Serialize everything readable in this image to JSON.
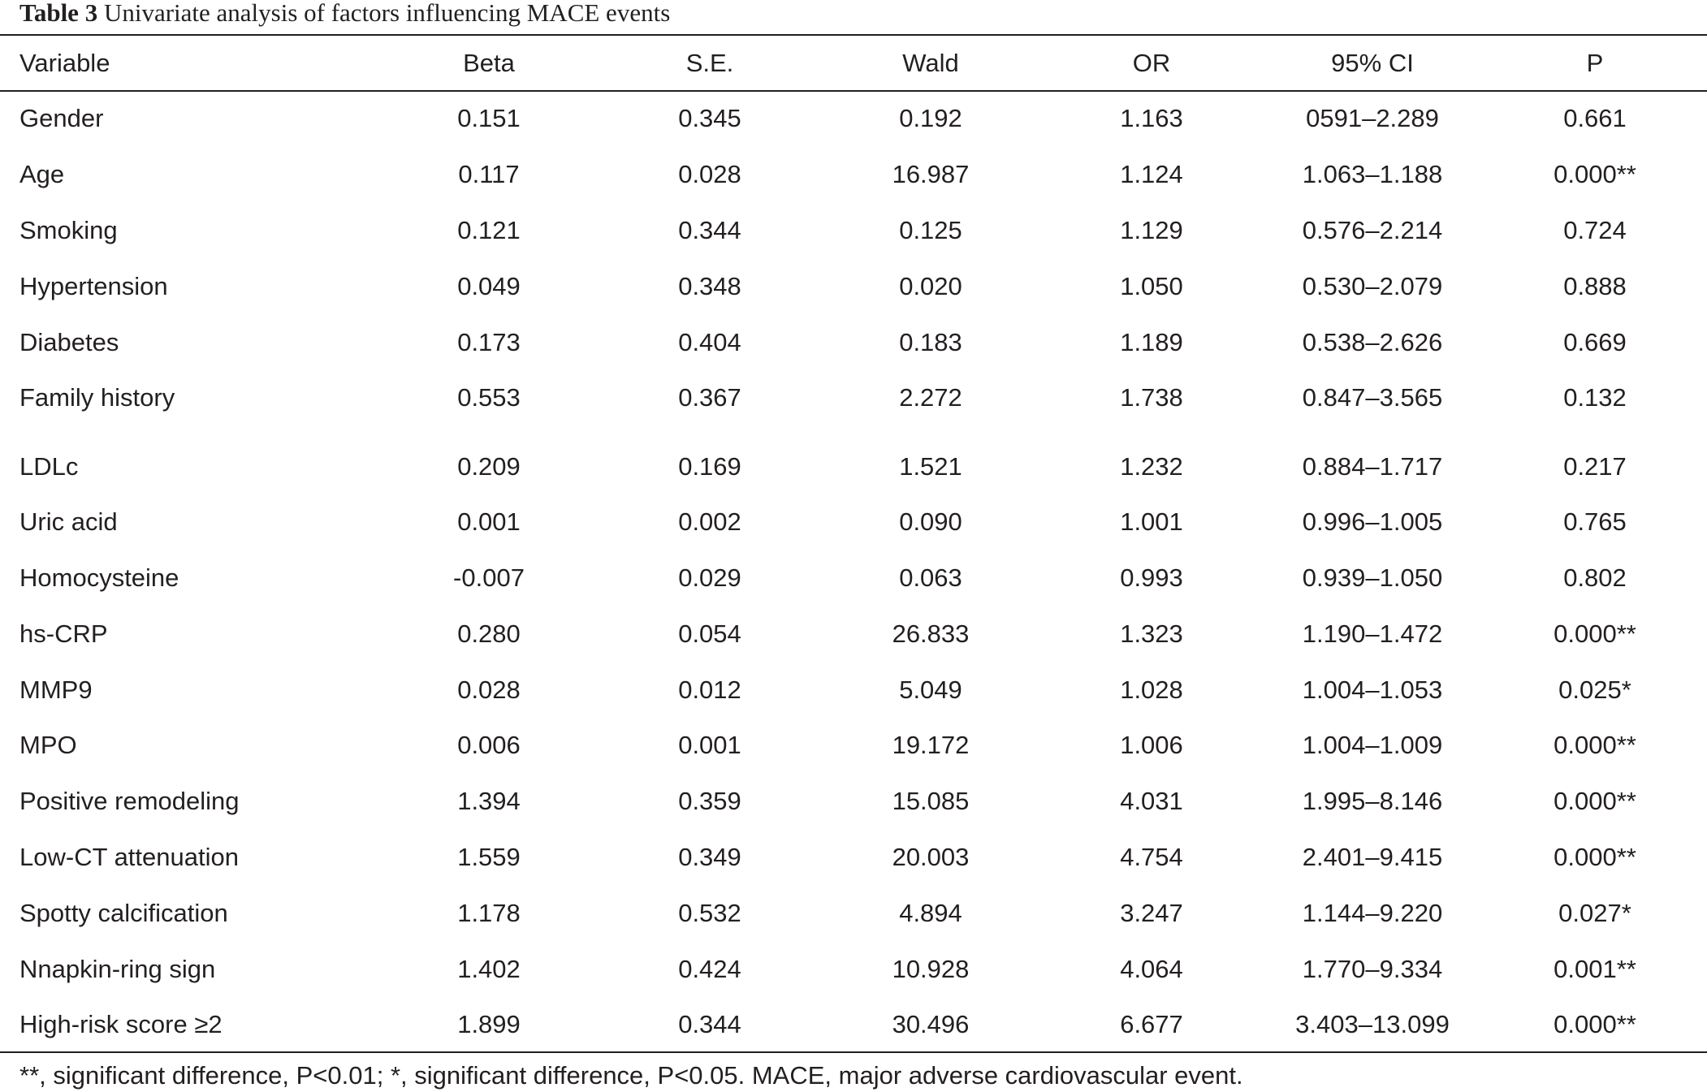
{
  "caption": {
    "label": "Table 3",
    "text": "Univariate analysis of factors influencing MACE events"
  },
  "table": {
    "headers": [
      "Variable",
      "Beta",
      "S.E.",
      "Wald",
      "OR",
      "95% CI",
      "P"
    ],
    "rows": [
      [
        "Gender",
        "0.151",
        "0.345",
        "0.192",
        "1.163",
        "0591–2.289",
        "0.661"
      ],
      [
        "Age",
        "0.117",
        "0.028",
        "16.987",
        "1.124",
        "1.063–1.188",
        "0.000**"
      ],
      [
        "Smoking",
        "0.121",
        "0.344",
        "0.125",
        "1.129",
        "0.576–2.214",
        "0.724"
      ],
      [
        "Hypertension",
        "0.049",
        "0.348",
        "0.020",
        "1.050",
        "0.530–2.079",
        "0.888"
      ],
      [
        "Diabetes",
        "0.173",
        "0.404",
        "0.183",
        "1.189",
        "0.538–2.626",
        "0.669"
      ],
      [
        "Family history",
        "0.553",
        "0.367",
        "2.272",
        "1.738",
        "0.847–3.565",
        "0.132"
      ],
      [
        "LDLc",
        "0.209",
        "0.169",
        "1.521",
        "1.232",
        "0.884–1.717",
        "0.217"
      ],
      [
        "Uric acid",
        "0.001",
        "0.002",
        "0.090",
        "1.001",
        "0.996–1.005",
        "0.765"
      ],
      [
        "Homocysteine",
        "-0.007",
        "0.029",
        "0.063",
        "0.993",
        "0.939–1.050",
        "0.802"
      ],
      [
        "hs-CRP",
        "0.280",
        "0.054",
        "26.833",
        "1.323",
        "1.190–1.472",
        "0.000**"
      ],
      [
        "MMP9",
        "0.028",
        "0.012",
        "5.049",
        "1.028",
        "1.004–1.053",
        "0.025*"
      ],
      [
        "MPO",
        "0.006",
        "0.001",
        "19.172",
        "1.006",
        "1.004–1.009",
        "0.000**"
      ],
      [
        "Positive remodeling",
        "1.394",
        "0.359",
        "15.085",
        "4.031",
        "1.995–8.146",
        "0.000**"
      ],
      [
        "Low-CT attenuation",
        "1.559",
        "0.349",
        "20.003",
        "4.754",
        "2.401–9.415",
        "0.000**"
      ],
      [
        "Spotty calcification",
        "1.178",
        "0.532",
        "4.894",
        "3.247",
        "1.144–9.220",
        "0.027*"
      ],
      [
        "Nnapkin-ring sign",
        "1.402",
        "0.424",
        "10.928",
        "4.064",
        "1.770–9.334",
        "0.001**"
      ],
      [
        "High-risk score ≥2",
        "1.899",
        "0.344",
        "30.496",
        "6.677",
        "3.403–13.099",
        "0.000**"
      ]
    ]
  },
  "footnote": "**, significant difference, P<0.01; *, significant difference, P<0.05. MACE, major adverse cardiovascular event."
}
